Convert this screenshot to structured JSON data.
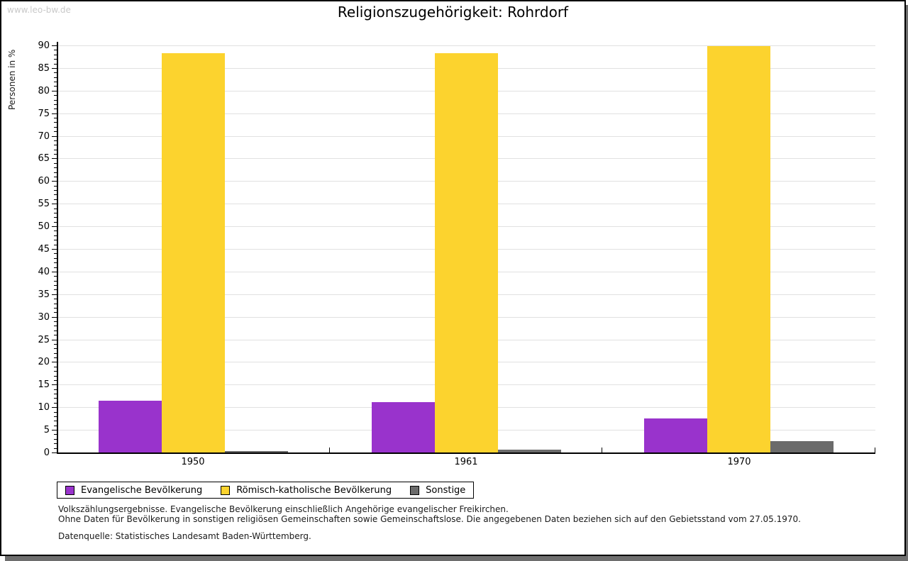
{
  "watermark": "www.leo-bw.de",
  "title": "Religionszugehörigkeit: Rohrdorf",
  "chart_data": {
    "type": "bar",
    "title": "Religionszugehörigkeit: Rohrdorf",
    "ylabel": "Personen in %",
    "xlabel": "",
    "ylim": [
      0,
      90
    ],
    "ytick_step": 5,
    "y_minor_tick_step": 1,
    "grid": true,
    "legend_position": "bottom",
    "categories": [
      "1950",
      "1961",
      "1970"
    ],
    "series": [
      {
        "name": "Evangelische Bevölkerung",
        "color": "#9933cc",
        "values": [
          11.4,
          11.2,
          7.6
        ]
      },
      {
        "name": "Römisch-katholische Bevölkerung",
        "color": "#fcd32e",
        "values": [
          88.3,
          88.2,
          89.9
        ]
      },
      {
        "name": "Sonstige",
        "color": "#6b6b6b",
        "values": [
          0.3,
          0.6,
          2.5
        ]
      }
    ]
  },
  "appearance": {
    "gridline_color": "#e1e1e1",
    "axis_color": "#000000",
    "shadow_color": "#6e6e6e",
    "watermark_color": "#c9c9c9"
  },
  "footer": {
    "line1": "Volkszählungsergebnisse. Evangelische Bevölkerung einschließlich Angehörige evangelischer Freikirchen.",
    "line2": "Ohne Daten für Bevölkerung in sonstigen religiösen Gemeinschaften sowie Gemeinschaftslose. Die angegebenen Daten beziehen sich auf den Gebietsstand vom 27.05.1970.",
    "source": "Datenquelle: Statistisches Landesamt Baden-Württemberg."
  }
}
